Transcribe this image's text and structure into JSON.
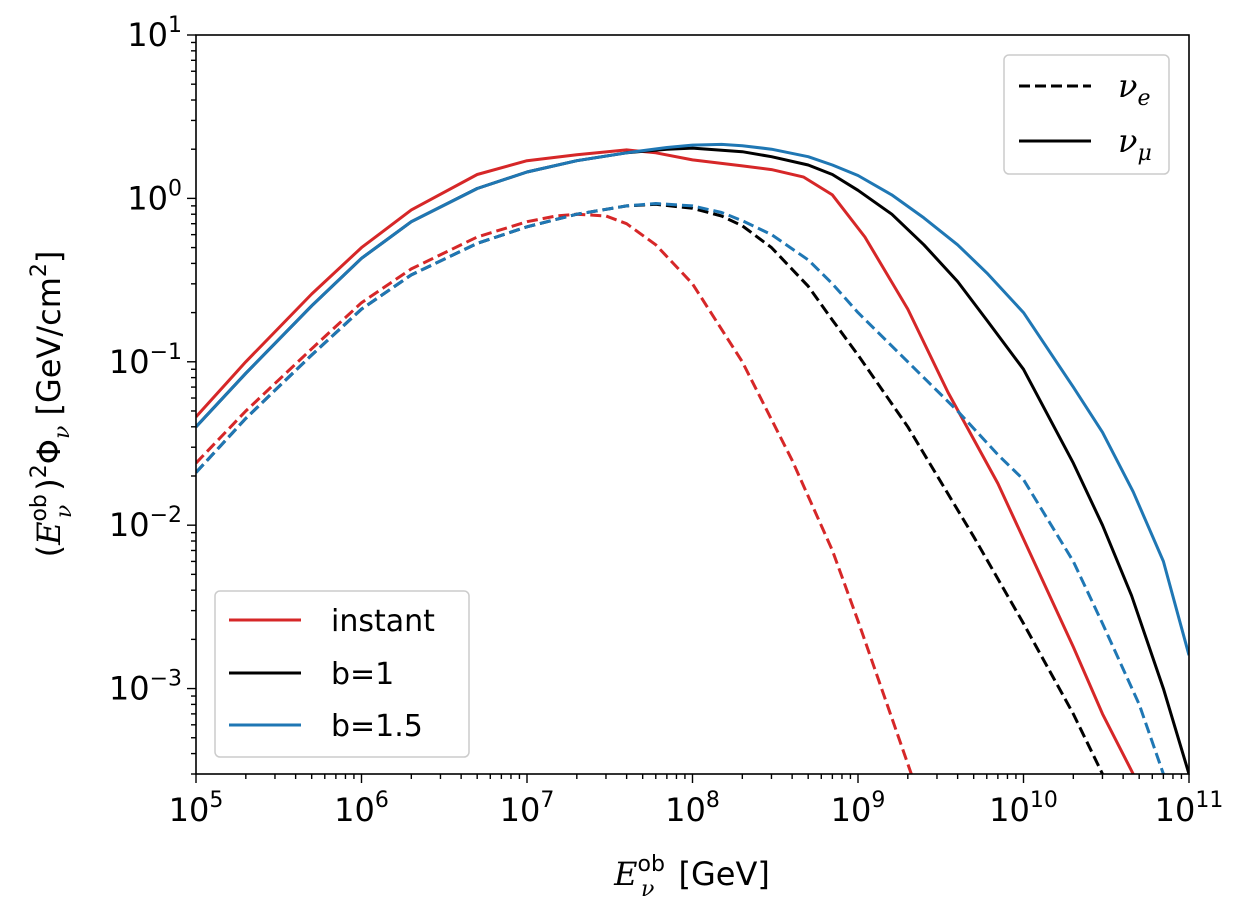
{
  "chart_data": {
    "type": "line",
    "xscale": "log",
    "yscale": "log",
    "xlim": [
      100000,
      100000000000
    ],
    "ylim": [
      0.0003,
      10
    ],
    "x_ticks": [
      {
        "value": 100000,
        "base": "10",
        "exp": "5"
      },
      {
        "value": 1000000,
        "base": "10",
        "exp": "6"
      },
      {
        "value": 10000000,
        "base": "10",
        "exp": "7"
      },
      {
        "value": 100000000,
        "base": "10",
        "exp": "8"
      },
      {
        "value": 1000000000,
        "base": "10",
        "exp": "9"
      },
      {
        "value": 10000000000,
        "base": "10",
        "exp": "10"
      },
      {
        "value": 100000000000,
        "base": "10",
        "exp": "11"
      }
    ],
    "y_ticks": [
      {
        "value": 0.001,
        "base": "10",
        "exp": "−3"
      },
      {
        "value": 0.01,
        "base": "10",
        "exp": "−2"
      },
      {
        "value": 0.1,
        "base": "10",
        "exp": "−1"
      },
      {
        "value": 1,
        "base": "10",
        "exp": "0"
      },
      {
        "value": 10,
        "base": "10",
        "exp": "1"
      }
    ],
    "xlabel": {
      "main": "E",
      "sub": "ν",
      "sup": "ob",
      "unit": " [GeV]"
    },
    "ylabel": {
      "open": "(",
      "main": "E",
      "sub": "ν",
      "sup": "ob",
      "close": ")",
      "sup2": "2",
      "phi": "Φ",
      "phisub": "ν",
      "unit": " [GeV/cm",
      "unitsup": "2",
      "unitclose": "]"
    },
    "legend_models": [
      {
        "label": "instant",
        "color": "#d62728"
      },
      {
        "label": "b=1",
        "color": "#000000"
      },
      {
        "label": "b=1.5",
        "color": "#1f77b4"
      }
    ],
    "legend_flavors": [
      {
        "symbol": "ν",
        "sub": "e",
        "style": "dashed"
      },
      {
        "symbol": "ν",
        "sub": "μ",
        "style": "solid"
      }
    ],
    "series": [
      {
        "name": "instant ν_μ",
        "model": "instant",
        "flavor": "mu",
        "color": "#d62728",
        "style": "solid",
        "x": [
          100000,
          200000,
          500000,
          1000000,
          2000000,
          5000000,
          10000000,
          20000000,
          40000000,
          60000000,
          100000000,
          200000000,
          300000000,
          470000000,
          700000000,
          1100000000,
          2000000000,
          3500000000,
          7000000000,
          20000000000,
          30000000000,
          46000000000
        ],
        "y": [
          0.046,
          0.1,
          0.26,
          0.5,
          0.85,
          1.4,
          1.7,
          1.85,
          1.98,
          1.9,
          1.72,
          1.58,
          1.5,
          1.35,
          1.05,
          0.58,
          0.21,
          0.065,
          0.018,
          0.0018,
          0.0007,
          0.0003
        ]
      },
      {
        "name": "b=1 ν_μ",
        "model": "b=1",
        "flavor": "mu",
        "color": "#000000",
        "style": "solid",
        "x": [
          100000,
          200000,
          500000,
          1000000,
          2000000,
          5000000,
          10000000,
          20000000,
          40000000,
          70000000,
          100000000,
          200000000,
          300000000,
          500000000,
          700000000,
          1000000000,
          1600000000,
          2500000000,
          4000000000,
          6000000000,
          10000000000,
          20000000000,
          30000000000,
          45000000000,
          70000000000,
          100000000000
        ],
        "y": [
          0.04,
          0.085,
          0.22,
          0.43,
          0.72,
          1.15,
          1.45,
          1.7,
          1.9,
          2.0,
          2.03,
          1.93,
          1.8,
          1.6,
          1.4,
          1.12,
          0.8,
          0.52,
          0.31,
          0.18,
          0.09,
          0.024,
          0.01,
          0.0037,
          0.001,
          0.0003
        ]
      },
      {
        "name": "b=1.5 ν_μ",
        "model": "b=1.5",
        "flavor": "mu",
        "color": "#1f77b4",
        "style": "solid",
        "x": [
          100000,
          200000,
          500000,
          1000000,
          2000000,
          5000000,
          10000000,
          20000000,
          40000000,
          70000000,
          100000000,
          150000000,
          200000000,
          300000000,
          500000000,
          700000000,
          1000000000,
          1600000000,
          2500000000,
          4000000000,
          6000000000,
          10000000000,
          20000000000,
          30000000000,
          46000000000,
          70000000000,
          100000000000
        ],
        "y": [
          0.04,
          0.085,
          0.22,
          0.43,
          0.72,
          1.15,
          1.45,
          1.7,
          1.9,
          2.05,
          2.12,
          2.14,
          2.1,
          2.0,
          1.8,
          1.6,
          1.38,
          1.05,
          0.76,
          0.52,
          0.35,
          0.2,
          0.07,
          0.037,
          0.016,
          0.006,
          0.0016
        ]
      },
      {
        "name": "instant ν_e",
        "model": "instant",
        "flavor": "e",
        "color": "#d62728",
        "style": "dashed",
        "x": [
          100000,
          200000,
          500000,
          1000000,
          2000000,
          5000000,
          10000000,
          15000000,
          20000000,
          30000000,
          40000000,
          60000000,
          100000000,
          200000000,
          400000000,
          700000000,
          1000000000,
          1500000000,
          2100000000
        ],
        "y": [
          0.024,
          0.05,
          0.12,
          0.23,
          0.37,
          0.58,
          0.72,
          0.78,
          0.8,
          0.78,
          0.7,
          0.52,
          0.3,
          0.1,
          0.025,
          0.007,
          0.0026,
          0.0008,
          0.0003
        ]
      },
      {
        "name": "b=1 ν_e",
        "model": "b=1",
        "flavor": "e",
        "color": "#000000",
        "style": "dashed",
        "x": [
          100000,
          200000,
          500000,
          1000000,
          2000000,
          5000000,
          10000000,
          20000000,
          40000000,
          60000000,
          100000000,
          150000000,
          200000000,
          300000000,
          500000000,
          700000000,
          1000000000,
          2000000000,
          5000000000,
          10000000000,
          20000000000,
          30000000000
        ],
        "y": [
          0.021,
          0.045,
          0.11,
          0.21,
          0.34,
          0.53,
          0.67,
          0.8,
          0.9,
          0.92,
          0.87,
          0.78,
          0.68,
          0.5,
          0.29,
          0.18,
          0.11,
          0.04,
          0.0085,
          0.0025,
          0.0007,
          0.0003
        ]
      },
      {
        "name": "b=1.5 ν_e",
        "model": "b=1.5",
        "flavor": "e",
        "color": "#1f77b4",
        "style": "dashed",
        "x": [
          100000,
          200000,
          500000,
          1000000,
          2000000,
          5000000,
          10000000,
          20000000,
          40000000,
          60000000,
          100000000,
          150000000,
          200000000,
          300000000,
          500000000,
          700000000,
          1000000000,
          2000000000,
          4000000000,
          7000000000,
          10000000000,
          20000000000,
          30000000000,
          50000000000,
          70000000000
        ],
        "y": [
          0.021,
          0.045,
          0.11,
          0.21,
          0.34,
          0.53,
          0.67,
          0.8,
          0.9,
          0.93,
          0.9,
          0.82,
          0.73,
          0.6,
          0.42,
          0.3,
          0.2,
          0.1,
          0.05,
          0.027,
          0.019,
          0.006,
          0.0025,
          0.0008,
          0.0003
        ]
      }
    ]
  }
}
